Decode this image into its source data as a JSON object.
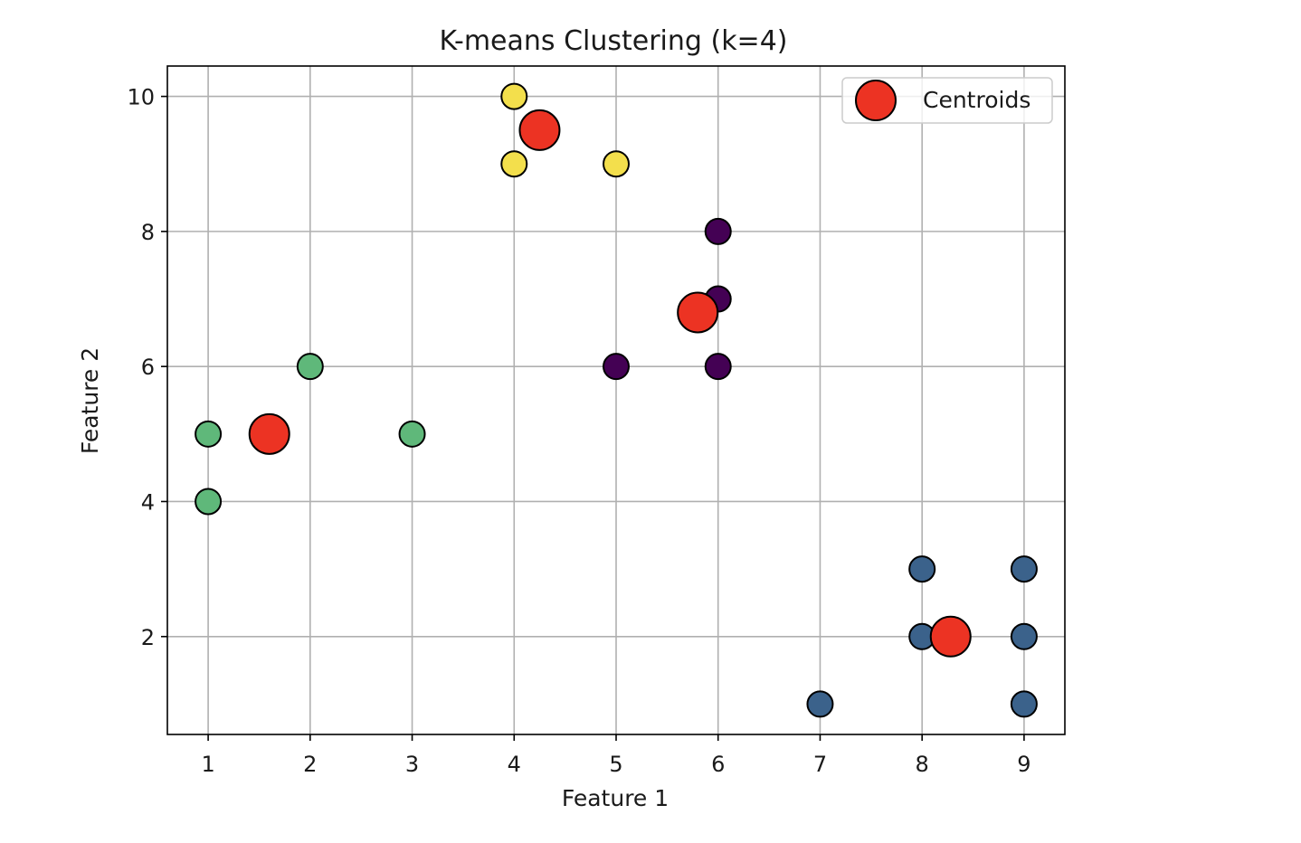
{
  "chart_data": {
    "type": "scatter",
    "title": "K-means Clustering (k=4)",
    "xlabel": "Feature 1",
    "ylabel": "Feature 2",
    "xlim": [
      0.6,
      9.4
    ],
    "ylim": [
      0.55,
      10.45
    ],
    "xticks": [
      1,
      2,
      3,
      4,
      5,
      6,
      7,
      8,
      9
    ],
    "yticks": [
      2,
      4,
      6,
      8,
      10
    ],
    "grid": true,
    "legend_position": "top-right",
    "cluster_colors": [
      "#440154",
      "#3b628b",
      "#5fb87a",
      "#f3df4c"
    ],
    "points": [
      {
        "x": 1,
        "y": 5,
        "cluster": 2
      },
      {
        "x": 1,
        "y": 4,
        "cluster": 2
      },
      {
        "x": 2,
        "y": 6,
        "cluster": 2
      },
      {
        "x": 3,
        "y": 5,
        "cluster": 2
      },
      {
        "x": 4,
        "y": 10,
        "cluster": 3
      },
      {
        "x": 4,
        "y": 9,
        "cluster": 3
      },
      {
        "x": 5,
        "y": 9,
        "cluster": 3
      },
      {
        "x": 6,
        "y": 8,
        "cluster": 0
      },
      {
        "x": 6,
        "y": 7,
        "cluster": 0
      },
      {
        "x": 5,
        "y": 6,
        "cluster": 0
      },
      {
        "x": 6,
        "y": 6,
        "cluster": 0
      },
      {
        "x": 8,
        "y": 3,
        "cluster": 1
      },
      {
        "x": 9,
        "y": 3,
        "cluster": 1
      },
      {
        "x": 8,
        "y": 2,
        "cluster": 1
      },
      {
        "x": 9,
        "y": 2,
        "cluster": 1
      },
      {
        "x": 7,
        "y": 1,
        "cluster": 1
      },
      {
        "x": 9,
        "y": 1,
        "cluster": 1
      }
    ],
    "centroids": {
      "name": "Centroids",
      "color": "#ec3323",
      "points": [
        {
          "x": 1.6,
          "y": 5.0
        },
        {
          "x": 4.25,
          "y": 9.5
        },
        {
          "x": 5.8,
          "y": 6.8
        },
        {
          "x": 8.28,
          "y": 2.0
        }
      ]
    }
  }
}
